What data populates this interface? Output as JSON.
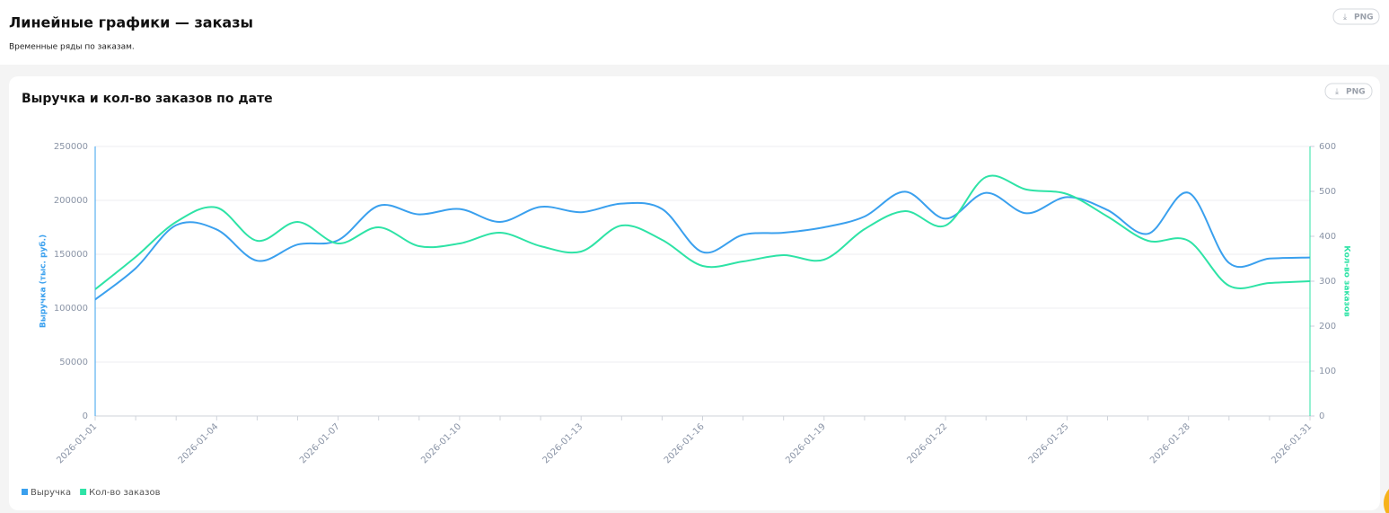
{
  "header": {
    "title": "Линейные графики — заказы",
    "subtitle": "Временные ряды по заказам.",
    "button": "PNG"
  },
  "card": {
    "button": "PNG"
  },
  "chart_data": {
    "type": "line",
    "title": "Выручка и кол-во заказов по дате",
    "categories": [
      "2026-01-01",
      null,
      null,
      "2026-01-04",
      null,
      null,
      "2026-01-07",
      null,
      null,
      "2026-01-10",
      null,
      null,
      "2026-01-13",
      null,
      null,
      "2026-01-16",
      null,
      null,
      "2026-01-19",
      null,
      null,
      "2026-01-22",
      null,
      null,
      "2026-01-25",
      null,
      null,
      "2026-01-28",
      null,
      null,
      "2026-01-31"
    ],
    "ylabel": "Выручка (тыс. руб.)",
    "y2label": "Кол-во заказов",
    "ylim": [
      0,
      250000
    ],
    "yticks": [
      0,
      50000,
      100000,
      150000,
      200000,
      250000
    ],
    "y2lim": [
      0,
      600
    ],
    "y2ticks": [
      0,
      100,
      200,
      300,
      400,
      500,
      600
    ],
    "grid": true,
    "legend": "bottom-left",
    "series": [
      {
        "name": "Выручка",
        "color": "#3aa0ee",
        "values": [
          108000,
          137000,
          177000,
          173000,
          144000,
          159000,
          163000,
          195000,
          187000,
          192000,
          180000,
          194000,
          189000,
          197000,
          192000,
          152000,
          168000,
          170000,
          175000,
          185000,
          208000,
          183000,
          207000,
          188000,
          203000,
          191000,
          169000,
          207000,
          142000,
          146000,
          147000
        ]
      },
      {
        "name": "Кол-во заказов",
        "color": "#2ee3a6",
        "axis": "y2",
        "values": [
          282,
          354,
          432,
          464,
          390,
          432,
          384,
          420,
          378,
          384,
          408,
          378,
          366,
          424,
          392,
          334,
          344,
          358,
          348,
          416,
          456,
          424,
          532,
          504,
          494,
          444,
          390,
          390,
          290,
          296,
          300
        ]
      }
    ]
  }
}
